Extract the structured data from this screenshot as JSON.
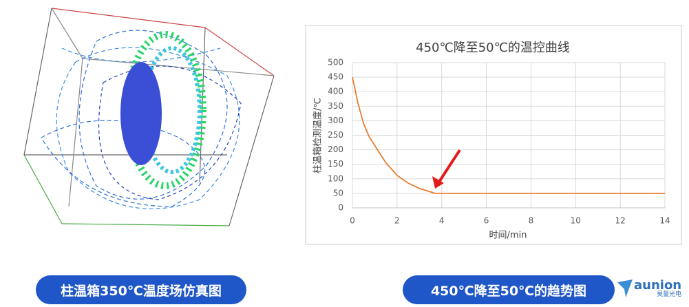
{
  "chart_data": {
    "type": "line",
    "title": "450℃降至50℃的温控曲线",
    "x_label": "时间/min",
    "y_label": "柱温箱检测温度/℃",
    "x": [
      0,
      0.25,
      0.5,
      0.75,
      1,
      1.5,
      2,
      2.5,
      3,
      3.5,
      3.7,
      4,
      6,
      8,
      10,
      12,
      14
    ],
    "series": [
      {
        "name": "温度",
        "color": "#e97b2c",
        "values": [
          450,
          360,
          290,
          245,
          215,
          155,
          112,
          85,
          67,
          55,
          50,
          50,
          50,
          50,
          50,
          50,
          50
        ]
      }
    ],
    "xlim": [
      0,
      14
    ],
    "xticks": [
      0,
      2,
      4,
      6,
      8,
      10,
      12,
      14
    ],
    "ylim": [
      0,
      500
    ],
    "yticks": [
      0,
      50,
      100,
      150,
      200,
      250,
      300,
      350,
      400,
      450,
      500
    ],
    "grid": true
  },
  "captions": [
    "柱温箱350℃温度场仿真图",
    "450℃降至50℃的趋势图"
  ],
  "logo": {
    "name": "aunion",
    "subtitle": "昊量光电"
  }
}
